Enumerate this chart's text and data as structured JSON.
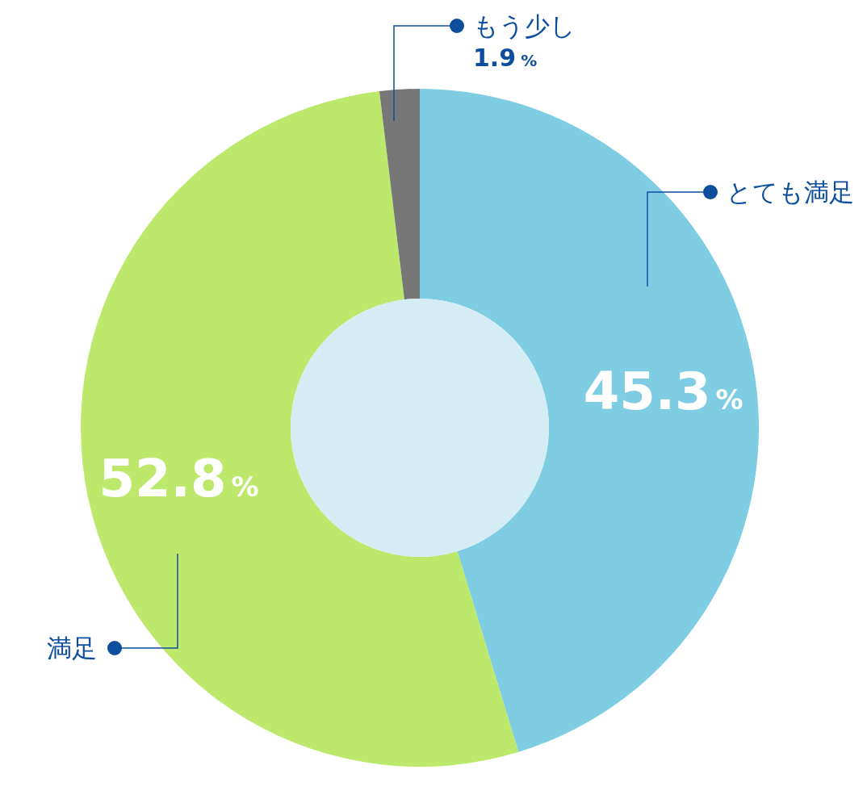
{
  "chart_data": {
    "type": "donut",
    "categories": [
      "とても満足",
      "満足",
      "もう少し"
    ],
    "values": [
      45.3,
      52.8,
      1.9
    ],
    "colors": [
      "#7ecde3",
      "#bce96c",
      "#777777"
    ],
    "value_labels": [
      "45.3%",
      "52.8%",
      "1.9%"
    ]
  }
}
